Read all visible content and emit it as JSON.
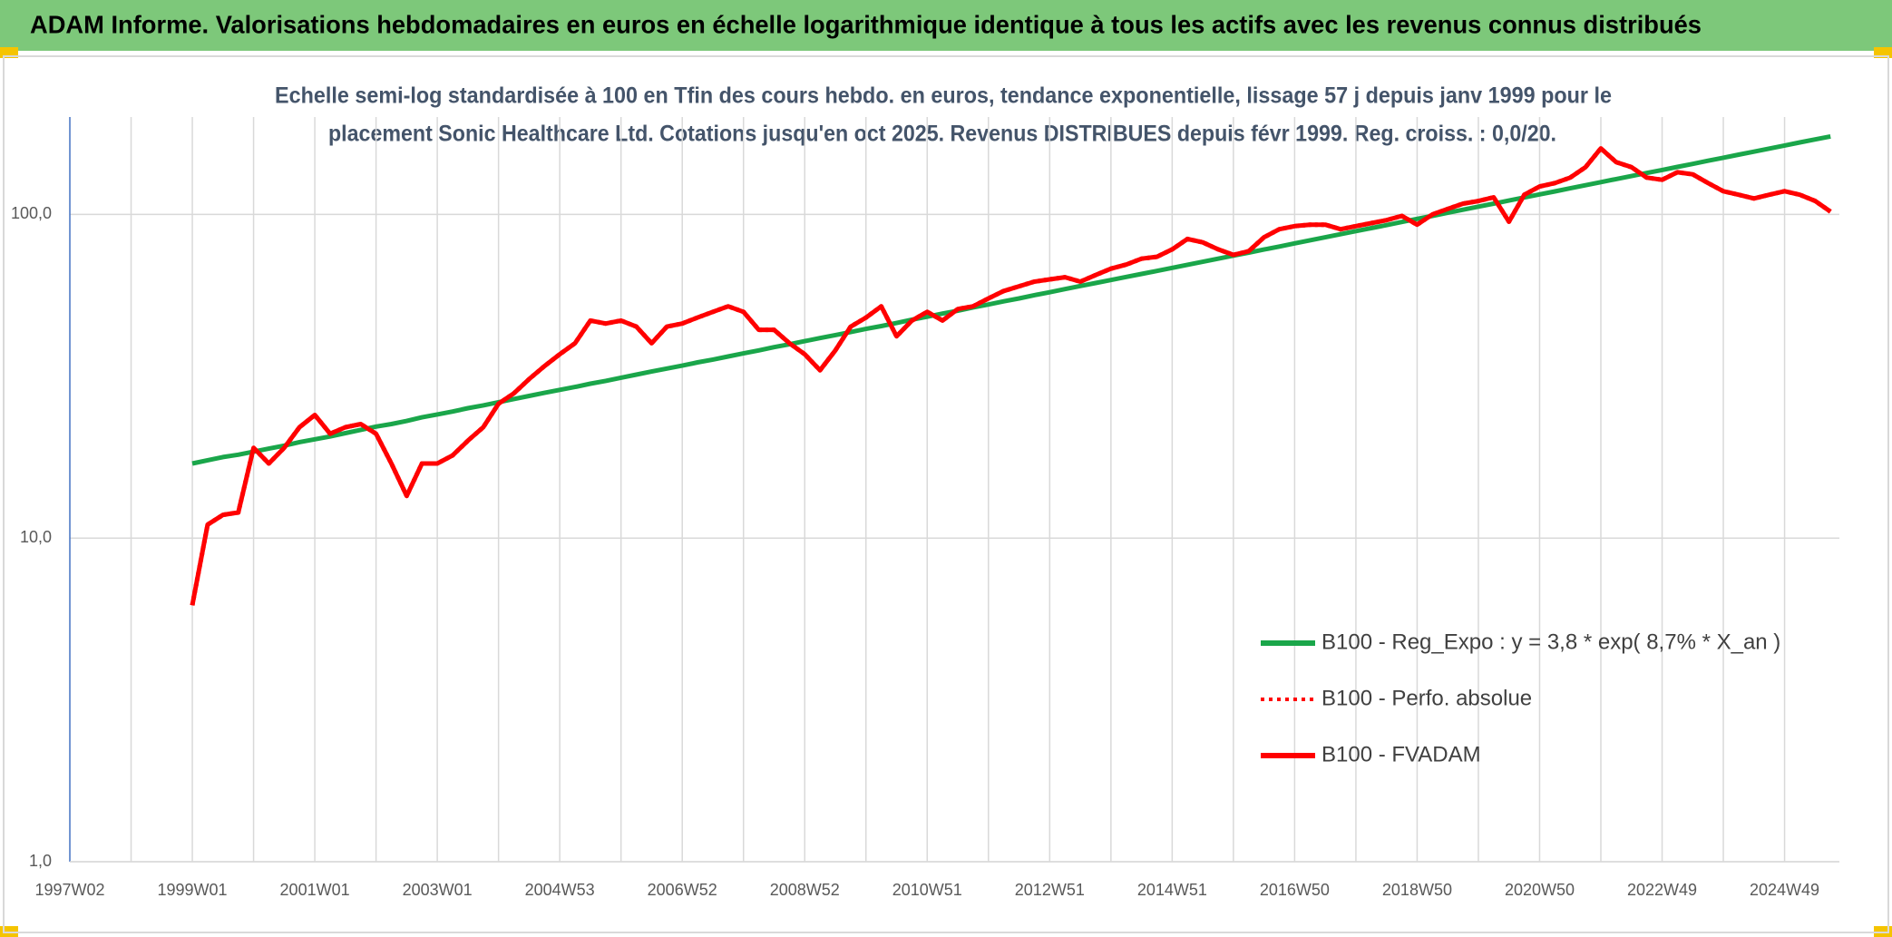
{
  "header": {
    "title": "ADAM Informe. Valorisations hebdomadaires en euros en échelle logarithmique identique à tous les actifs avec les revenus connus distribués"
  },
  "chart_data": {
    "type": "line",
    "subtitle": [
      "Echelle semi-log standardisée à 100 en Tfin des cours hebdo. en euros, tendance exponentielle, lissage 57 j depuis janv 1999 pour le",
      "placement Sonic Healthcare Ltd. Cotations jusqu'en oct 2025. Revenus DISTRIBUES depuis févr 1999. Reg. croiss. : 0,0/20."
    ],
    "categories": [
      "1997W02",
      null,
      null,
      null,
      null,
      null,
      null,
      null,
      "1999W01",
      null,
      null,
      null,
      null,
      null,
      null,
      null,
      "2001W01",
      null,
      null,
      null,
      null,
      null,
      null,
      null,
      "2003W01",
      null,
      null,
      null,
      null,
      null,
      null,
      null,
      "2004W53",
      null,
      null,
      null,
      null,
      null,
      null,
      null,
      "2006W52",
      null,
      null,
      null,
      null,
      null,
      null,
      null,
      "2008W52",
      null,
      null,
      null,
      null,
      null,
      null,
      null,
      "2010W51",
      null,
      null,
      null,
      null,
      null,
      null,
      null,
      "2012W51",
      null,
      null,
      null,
      null,
      null,
      null,
      null,
      "2014W51",
      null,
      null,
      null,
      null,
      null,
      null,
      null,
      "2016W50",
      null,
      null,
      null,
      null,
      null,
      null,
      null,
      "2018W50",
      null,
      null,
      null,
      null,
      null,
      null,
      null,
      "2020W50",
      null,
      null,
      null,
      null,
      null,
      null,
      null,
      "2022W49",
      null,
      null,
      null,
      null,
      null,
      null,
      null,
      "2024W49",
      null,
      null,
      null
    ],
    "series": [
      {
        "name": "B100 - Reg_Expo : y = 3,8 * exp( 8,7% *  X_an )",
        "color": "#1aa64a",
        "style": "solid",
        "values": [
          null,
          null,
          null,
          null,
          null,
          null,
          null,
          null,
          17.0,
          17.4,
          17.8,
          18.1,
          18.5,
          18.9,
          19.3,
          19.8,
          20.2,
          20.6,
          21.1,
          21.6,
          22.1,
          22.5,
          23.0,
          23.6,
          24.1,
          24.6,
          25.2,
          25.7,
          26.3,
          26.9,
          27.5,
          28.1,
          28.7,
          29.3,
          30.0,
          30.6,
          31.3,
          32.0,
          32.7,
          33.4,
          34.1,
          34.9,
          35.6,
          36.4,
          37.2,
          38.0,
          38.9,
          39.7,
          40.6,
          41.5,
          42.4,
          43.3,
          44.3,
          45.2,
          46.2,
          47.3,
          48.3,
          49.4,
          50.4,
          51.6,
          52.7,
          53.9,
          55.0,
          56.3,
          57.5,
          58.8,
          60.1,
          61.4,
          62.7,
          64.1,
          65.5,
          66.9,
          68.4,
          69.9,
          71.4,
          73.0,
          74.6,
          76.2,
          77.9,
          79.6,
          81.4,
          83.2,
          85.0,
          86.9,
          88.8,
          90.7,
          92.7,
          94.8,
          96.9,
          99.0,
          101.2,
          103.4,
          105.7,
          108.0,
          110.4,
          112.8,
          115.3,
          117.8,
          120.4,
          123.1,
          125.8,
          128.6,
          131.4,
          134.3,
          137.2,
          140.2,
          143.3,
          146.5,
          149.7,
          153.0,
          156.3,
          159.8,
          163.3,
          166.9,
          170.5,
          174.2
        ]
      },
      {
        "name": "B100 - Perfo. absolue",
        "color": "#ff0000",
        "style": "dotted",
        "values": [
          null,
          null,
          null,
          null,
          null,
          null,
          null,
          null,
          6.2,
          11,
          11.8,
          12,
          19,
          17,
          19,
          22,
          24,
          21,
          22,
          22.5,
          21,
          17,
          13.5,
          17,
          17,
          18,
          20,
          22,
          26,
          28,
          31,
          34,
          37,
          40,
          47,
          46,
          47,
          45,
          40,
          45,
          46,
          48,
          50,
          52,
          50,
          44,
          44,
          40,
          37,
          33,
          38,
          45,
          48,
          52,
          42,
          47,
          50,
          47,
          51,
          52,
          55,
          58,
          60,
          62,
          63,
          64,
          62,
          65,
          68,
          70,
          73,
          74,
          78,
          84,
          82,
          78,
          75,
          77,
          85,
          90,
          92,
          93,
          93,
          90,
          92,
          94,
          96,
          99,
          93,
          100,
          104,
          108,
          110,
          113,
          95,
          115,
          122,
          125,
          130,
          140,
          160,
          145,
          140,
          130,
          128,
          135,
          133,
          125,
          118,
          115,
          112,
          115,
          118,
          115,
          110,
          102
        ]
      },
      {
        "name": "B100 - FVADAM",
        "color": "#ff0000",
        "style": "solid",
        "values": [
          null,
          null,
          null,
          null,
          null,
          null,
          null,
          null,
          6.2,
          11,
          11.8,
          12,
          19,
          17,
          19,
          22,
          24,
          21,
          22,
          22.5,
          21,
          17,
          13.5,
          17,
          17,
          18,
          20,
          22,
          26,
          28,
          31,
          34,
          37,
          40,
          47,
          46,
          47,
          45,
          40,
          45,
          46,
          48,
          50,
          52,
          50,
          44,
          44,
          40,
          37,
          33,
          38,
          45,
          48,
          52,
          42,
          47,
          50,
          47,
          51,
          52,
          55,
          58,
          60,
          62,
          63,
          64,
          62,
          65,
          68,
          70,
          73,
          74,
          78,
          84,
          82,
          78,
          75,
          77,
          85,
          90,
          92,
          93,
          93,
          90,
          92,
          94,
          96,
          99,
          93,
          100,
          104,
          108,
          110,
          113,
          95,
          115,
          122,
          125,
          130,
          140,
          160,
          145,
          140,
          130,
          128,
          135,
          133,
          125,
          118,
          115,
          112,
          115,
          118,
          115,
          110,
          102
        ]
      }
    ],
    "ylim": [
      1,
      200
    ],
    "log_y": true,
    "yticks": [
      {
        "value": 1,
        "label": "1,0"
      },
      {
        "value": 10,
        "label": "10,0"
      },
      {
        "value": 100,
        "label": "100,0"
      }
    ],
    "grid": true
  }
}
